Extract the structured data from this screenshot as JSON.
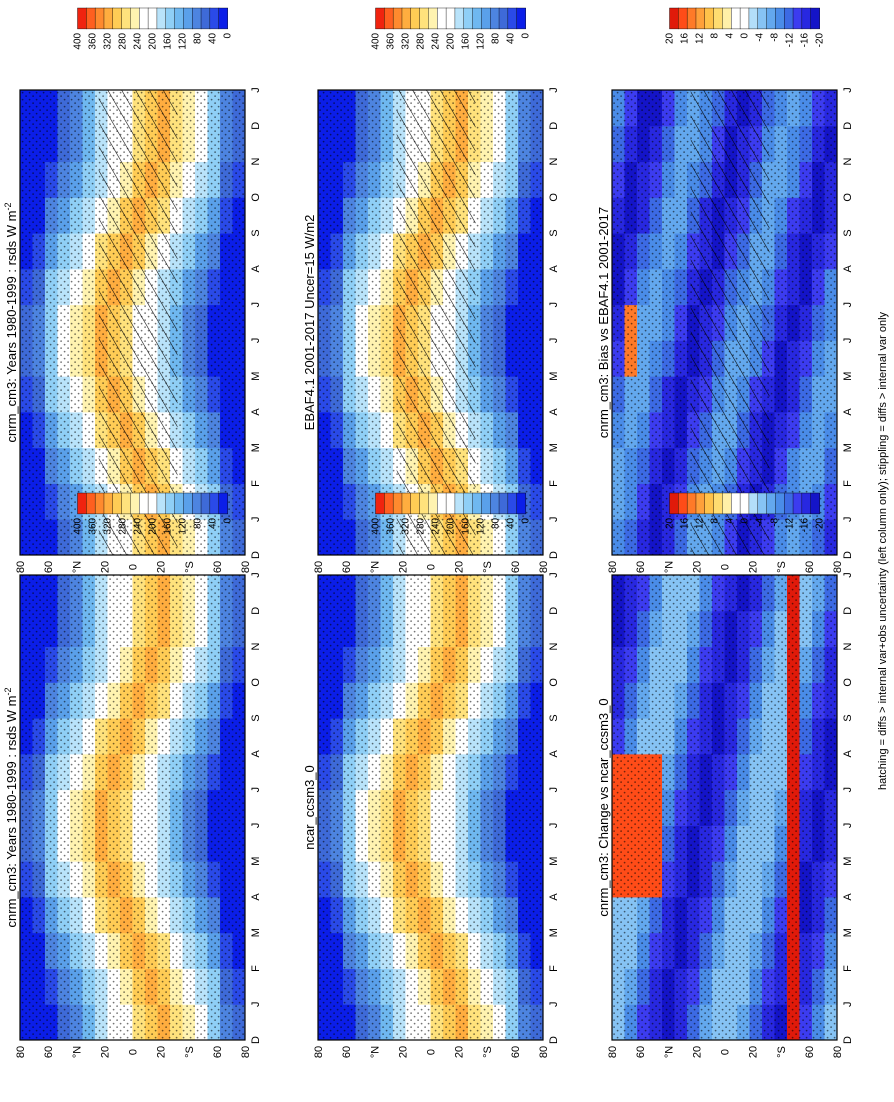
{
  "figure": {
    "footnote": "hatching = diffs > internal var+obs uncertainty (left column only); stippling = diffs > internal var only"
  },
  "palettes": {
    "abs": [
      "#0b1ee8",
      "#2a4ae8",
      "#3e6ad8",
      "#4d84e0",
      "#5aa0ea",
      "#6fb8f0",
      "#8fcff6",
      "#b9e3fa",
      "#ffffff",
      "#ffffff",
      "#fff3b0",
      "#ffe27c",
      "#ffcc55",
      "#ffad3f",
      "#ff8a2e",
      "#ff5f1f",
      "#f0230f"
    ],
    "diff": [
      "#1414c8",
      "#2828e0",
      "#3c3cf0",
      "#3c6ae4",
      "#4a8ce8",
      "#63a8ee",
      "#86c3f4",
      "#b3def9",
      "#ffffff",
      "#ffffff",
      "#fff0a8",
      "#ffdc70",
      "#ffc24a",
      "#ffa03a",
      "#ff7a28",
      "#ff4c18",
      "#e01a0a"
    ]
  },
  "chart_data": [
    {
      "type": "heatmap",
      "panel": "model-climatology-left",
      "title": "cnrm_cm3: Years 1980-1999 : rsds W m",
      "title_sup": "-2",
      "x_ticks": [
        "D",
        "J",
        "F",
        "M",
        "A",
        "M",
        "J",
        "J",
        "A",
        "S",
        "O",
        "N",
        "D",
        "J"
      ],
      "y_ticks": [
        "80",
        "60",
        "°N",
        "20",
        "0",
        "20",
        "°S",
        "60",
        "80"
      ],
      "y_range": [
        -90,
        90
      ],
      "colorbar_ticks": [
        "400",
        "360",
        "320",
        "280",
        "240",
        "200",
        "160",
        "120",
        "80",
        "40",
        "0"
      ],
      "colorbar_range": [
        0,
        420
      ],
      "palette": "abs",
      "field": "climatology",
      "overlay": "hatching+stippling"
    },
    {
      "type": "heatmap",
      "panel": "model-climatology-right",
      "title": "cnrm_cm3: Years 1980-1999 : rsds W m",
      "title_sup": "-2",
      "x_ticks": [
        "D",
        "J",
        "F",
        "M",
        "A",
        "M",
        "J",
        "J",
        "A",
        "S",
        "O",
        "N",
        "D",
        "J"
      ],
      "y_ticks": [
        "80",
        "60",
        "°N",
        "20",
        "0",
        "20",
        "°S",
        "60",
        "80"
      ],
      "y_range": [
        -90,
        90
      ],
      "colorbar_ticks": [
        "400",
        "360",
        "320",
        "280",
        "240",
        "200",
        "160",
        "120",
        "80",
        "40",
        "0"
      ],
      "colorbar_range": [
        0,
        420
      ],
      "palette": "abs",
      "field": "climatology",
      "overlay": "stippling"
    },
    {
      "type": "heatmap",
      "panel": "observation-climatology",
      "title": "EBAF4.1 2001-2017 Uncer=15 W/m2",
      "title_sup": "",
      "x_ticks": [
        "D",
        "J",
        "F",
        "M",
        "A",
        "M",
        "J",
        "J",
        "A",
        "S",
        "O",
        "N",
        "D",
        "J"
      ],
      "y_ticks": [
        "80",
        "60",
        "°N",
        "20",
        "0",
        "20",
        "°S",
        "60",
        "80"
      ],
      "y_range": [
        -90,
        90
      ],
      "colorbar_ticks": [
        "400",
        "360",
        "320",
        "280",
        "240",
        "200",
        "160",
        "120",
        "80",
        "40",
        "0"
      ],
      "colorbar_range": [
        0,
        420
      ],
      "palette": "abs",
      "field": "climatology",
      "overlay": "hatching+stippling"
    },
    {
      "type": "heatmap",
      "panel": "reference-model-climatology",
      "title": "ncar_ccsm3_0",
      "title_sup": "",
      "x_ticks": [
        "D",
        "J",
        "F",
        "M",
        "A",
        "M",
        "J",
        "J",
        "A",
        "S",
        "O",
        "N",
        "D",
        "J"
      ],
      "y_ticks": [
        "80",
        "60",
        "°N",
        "20",
        "0",
        "20",
        "°S",
        "60",
        "80"
      ],
      "y_range": [
        -90,
        90
      ],
      "colorbar_ticks": [
        "400",
        "360",
        "320",
        "280",
        "240",
        "200",
        "160",
        "120",
        "80",
        "40",
        "0"
      ],
      "colorbar_range": [
        0,
        420
      ],
      "palette": "abs",
      "field": "climatology",
      "overlay": "stippling"
    },
    {
      "type": "heatmap",
      "panel": "bias-vs-observation",
      "title": "cnrm_cm3: Bias vs EBAF4.1 2001-2017",
      "title_sup": "",
      "x_ticks": [
        "D",
        "J",
        "F",
        "M",
        "A",
        "M",
        "J",
        "J",
        "A",
        "S",
        "O",
        "N",
        "D",
        "J"
      ],
      "y_ticks": [
        "80",
        "60",
        "°N",
        "20",
        "0",
        "20",
        "°S",
        "60",
        "80"
      ],
      "y_range": [
        -90,
        90
      ],
      "colorbar_ticks": [
        "20",
        "16",
        "12",
        "8",
        "4",
        "0",
        "-4",
        "-8",
        "-12",
        "-16",
        "-20"
      ],
      "colorbar_range": [
        -22,
        22
      ],
      "palette": "diff",
      "field": "bias",
      "overlay": "hatching+stippling"
    },
    {
      "type": "heatmap",
      "panel": "change-vs-reference",
      "title": "cnrm_cm3: Change vs ncar_ccsm3_0",
      "title_sup": "",
      "x_ticks": [
        "D",
        "J",
        "F",
        "M",
        "A",
        "M",
        "J",
        "J",
        "A",
        "S",
        "O",
        "N",
        "D",
        "J"
      ],
      "y_ticks": [
        "80",
        "60",
        "°N",
        "20",
        "0",
        "20",
        "°S",
        "60",
        "80"
      ],
      "y_range": [
        -90,
        90
      ],
      "colorbar_ticks": [
        "20",
        "16",
        "12",
        "8",
        "4",
        "0",
        "-4",
        "-8",
        "-12",
        "-16",
        "-20"
      ],
      "colorbar_range": [
        -22,
        22
      ],
      "palette": "diff",
      "field": "change",
      "overlay": "stippling"
    }
  ]
}
